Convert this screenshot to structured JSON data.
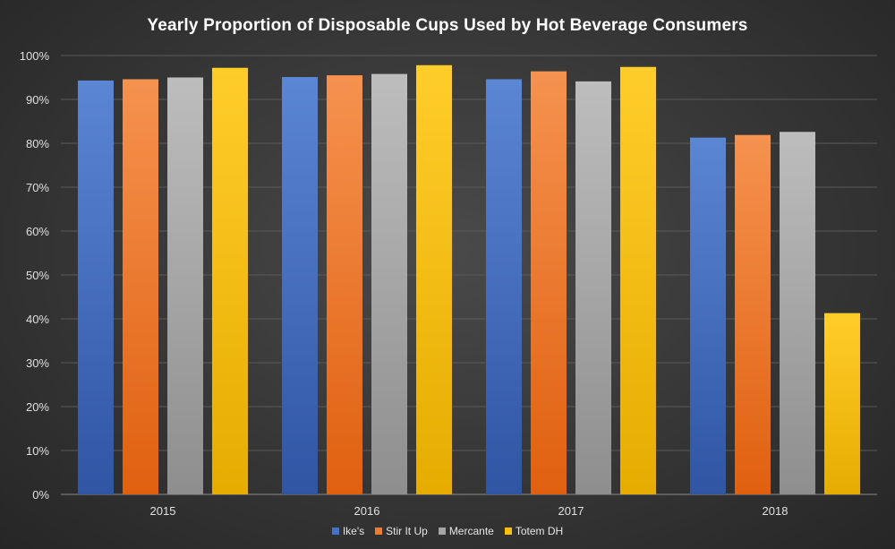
{
  "chart_data": {
    "type": "bar",
    "title": "Yearly Proportion of Disposable Cups Used by Hot Beverage Consumers",
    "xlabel": "",
    "ylabel": "",
    "categories": [
      "2015",
      "2016",
      "2017",
      "2018"
    ],
    "ylim": [
      0,
      100
    ],
    "y_ticks": [
      "0%",
      "10%",
      "20%",
      "30%",
      "40%",
      "50%",
      "60%",
      "70%",
      "80%",
      "90%",
      "100%"
    ],
    "grid": true,
    "legend_position": "bottom",
    "series": [
      {
        "name": "Ike's",
        "color": "#4472C4",
        "values": [
          94.3,
          95.1,
          94.6,
          81.3
        ]
      },
      {
        "name": "Stir It Up",
        "color": "#ED7D31",
        "values": [
          94.6,
          95.5,
          96.4,
          81.9
        ]
      },
      {
        "name": "Mercante",
        "color": "#A5A5A5",
        "values": [
          95.0,
          95.8,
          94.1,
          82.6
        ]
      },
      {
        "name": "Totem DH",
        "color": "#FFC000",
        "values": [
          97.2,
          97.8,
          97.4,
          41.3
        ]
      }
    ]
  }
}
